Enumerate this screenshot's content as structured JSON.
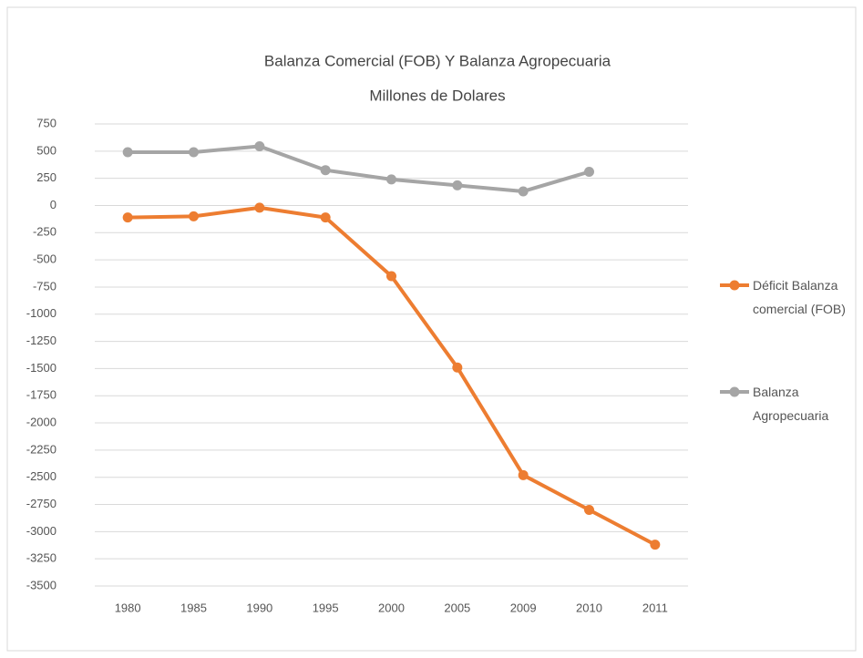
{
  "chart_data": {
    "type": "line",
    "title": "Balanza Comercial (FOB) Y Balanza Agropecuaria",
    "subtitle": "Millones de Dolares",
    "categories": [
      "1980",
      "1985",
      "1990",
      "1995",
      "2000",
      "2005",
      "2009",
      "2010",
      "2011"
    ],
    "series": [
      {
        "name": "Déficit Balanza comercial (FOB)",
        "color": "#ed7d31",
        "values": [
          -110,
          -100,
          -20,
          -110,
          -650,
          -1490,
          -2480,
          -2800,
          -3120
        ]
      },
      {
        "name": "Balanza Agropecuaria",
        "color": "#a5a5a5",
        "values": [
          490,
          490,
          545,
          325,
          240,
          185,
          130,
          310,
          null
        ]
      }
    ],
    "ylim": [
      -3500,
      750
    ],
    "yticks": [
      -3500,
      -3250,
      -3000,
      -2750,
      -2500,
      -2250,
      -2000,
      -1750,
      -1500,
      -1250,
      -1000,
      -750,
      -500,
      -250,
      0,
      250,
      500,
      750
    ],
    "grid": true,
    "legend": "right"
  }
}
